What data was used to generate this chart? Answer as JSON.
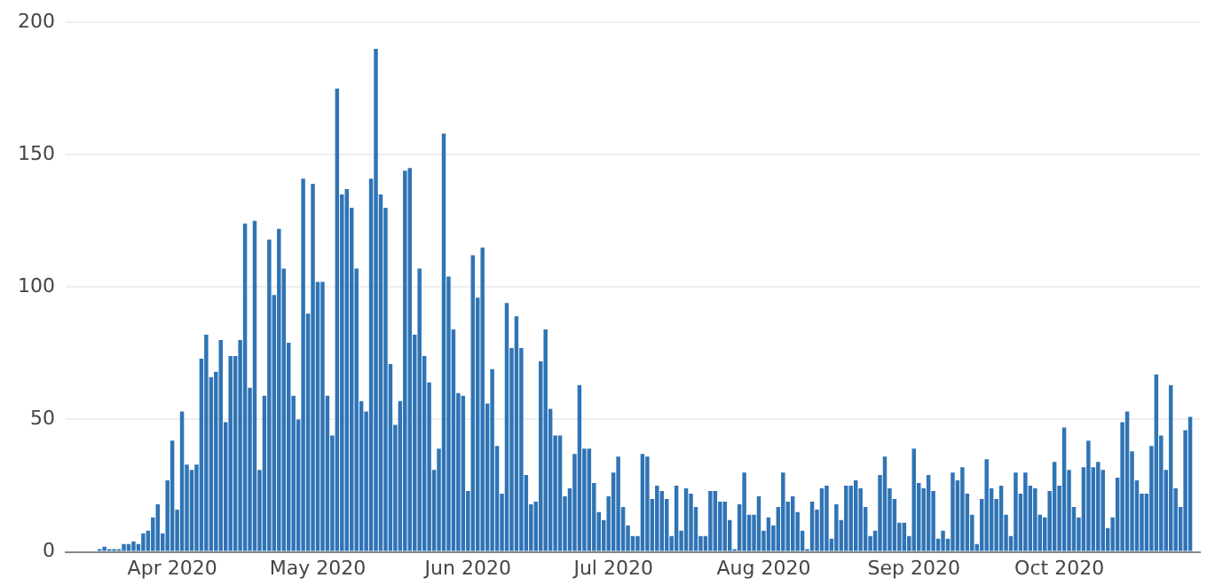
{
  "chart_data": {
    "type": "bar",
    "x": [
      "2020-03-17",
      "2020-03-18",
      "2020-03-19",
      "2020-03-20",
      "2020-03-21",
      "2020-03-22",
      "2020-03-23",
      "2020-03-24",
      "2020-03-25",
      "2020-03-26",
      "2020-03-27",
      "2020-03-28",
      "2020-03-29",
      "2020-03-30",
      "2020-03-31",
      "2020-04-01",
      "2020-04-02",
      "2020-04-03",
      "2020-04-04",
      "2020-04-05",
      "2020-04-06",
      "2020-04-07",
      "2020-04-08",
      "2020-04-09",
      "2020-04-10",
      "2020-04-11",
      "2020-04-12",
      "2020-04-13",
      "2020-04-14",
      "2020-04-15",
      "2020-04-16",
      "2020-04-17",
      "2020-04-18",
      "2020-04-19",
      "2020-04-20",
      "2020-04-21",
      "2020-04-22",
      "2020-04-23",
      "2020-04-24",
      "2020-04-25",
      "2020-04-26",
      "2020-04-27",
      "2020-04-28",
      "2020-04-29",
      "2020-04-30",
      "2020-05-01",
      "2020-05-02",
      "2020-05-03",
      "2020-05-04",
      "2020-05-05",
      "2020-05-06",
      "2020-05-07",
      "2020-05-08",
      "2020-05-09",
      "2020-05-10",
      "2020-05-11",
      "2020-05-12",
      "2020-05-13",
      "2020-05-14",
      "2020-05-15",
      "2020-05-16",
      "2020-05-17",
      "2020-05-18",
      "2020-05-19",
      "2020-05-20",
      "2020-05-21",
      "2020-05-22",
      "2020-05-23",
      "2020-05-24",
      "2020-05-25",
      "2020-05-26",
      "2020-05-27",
      "2020-05-28",
      "2020-05-29",
      "2020-05-30",
      "2020-05-31",
      "2020-06-01",
      "2020-06-02",
      "2020-06-03",
      "2020-06-04",
      "2020-06-05",
      "2020-06-06",
      "2020-06-07",
      "2020-06-08",
      "2020-06-09",
      "2020-06-10",
      "2020-06-11",
      "2020-06-12",
      "2020-06-13",
      "2020-06-14",
      "2020-06-15",
      "2020-06-16",
      "2020-06-17",
      "2020-06-18",
      "2020-06-19",
      "2020-06-20",
      "2020-06-21",
      "2020-06-22",
      "2020-06-23",
      "2020-06-24",
      "2020-06-25",
      "2020-06-26",
      "2020-06-27",
      "2020-06-28",
      "2020-06-29",
      "2020-06-30",
      "2020-07-01",
      "2020-07-02",
      "2020-07-03",
      "2020-07-04",
      "2020-07-05",
      "2020-07-06",
      "2020-07-07",
      "2020-07-08",
      "2020-07-09",
      "2020-07-10",
      "2020-07-11",
      "2020-07-12",
      "2020-07-13",
      "2020-07-14",
      "2020-07-15",
      "2020-07-16",
      "2020-07-17",
      "2020-07-18",
      "2020-07-19",
      "2020-07-20",
      "2020-07-21",
      "2020-07-22",
      "2020-07-23",
      "2020-07-24",
      "2020-07-25",
      "2020-07-26",
      "2020-07-27",
      "2020-07-28",
      "2020-07-29",
      "2020-07-30",
      "2020-07-31",
      "2020-08-01",
      "2020-08-02",
      "2020-08-03",
      "2020-08-04",
      "2020-08-05",
      "2020-08-06",
      "2020-08-07",
      "2020-08-08",
      "2020-08-09",
      "2020-08-10",
      "2020-08-11",
      "2020-08-12",
      "2020-08-13",
      "2020-08-14",
      "2020-08-15",
      "2020-08-16",
      "2020-08-17",
      "2020-08-18",
      "2020-08-19",
      "2020-08-20",
      "2020-08-21",
      "2020-08-22",
      "2020-08-23",
      "2020-08-24",
      "2020-08-25",
      "2020-08-26",
      "2020-08-27",
      "2020-08-28",
      "2020-08-29",
      "2020-08-30",
      "2020-08-31",
      "2020-09-01",
      "2020-09-02",
      "2020-09-03",
      "2020-09-04",
      "2020-09-05",
      "2020-09-06",
      "2020-09-07",
      "2020-09-08",
      "2020-09-09",
      "2020-09-10",
      "2020-09-11",
      "2020-09-12",
      "2020-09-13",
      "2020-09-14",
      "2020-09-15",
      "2020-09-16",
      "2020-09-17",
      "2020-09-18",
      "2020-09-19",
      "2020-09-20",
      "2020-09-21",
      "2020-09-22",
      "2020-09-23",
      "2020-09-24",
      "2020-09-25",
      "2020-09-26",
      "2020-09-27",
      "2020-09-28",
      "2020-09-29",
      "2020-09-30",
      "2020-10-01",
      "2020-10-02",
      "2020-10-03",
      "2020-10-04",
      "2020-10-05",
      "2020-10-06",
      "2020-10-07",
      "2020-10-08",
      "2020-10-09",
      "2020-10-10",
      "2020-10-11",
      "2020-10-12",
      "2020-10-13",
      "2020-10-14",
      "2020-10-15",
      "2020-10-16",
      "2020-10-17",
      "2020-10-18",
      "2020-10-19",
      "2020-10-20",
      "2020-10-21",
      "2020-10-22",
      "2020-10-23",
      "2020-10-24",
      "2020-10-25",
      "2020-10-26",
      "2020-10-27",
      "2020-10-28"
    ],
    "values": [
      1,
      2,
      1,
      1,
      1,
      3,
      3,
      4,
      3,
      7,
      8,
      13,
      18,
      7,
      27,
      42,
      16,
      53,
      33,
      31,
      33,
      73,
      82,
      66,
      68,
      80,
      49,
      74,
      74,
      80,
      124,
      62,
      125,
      31,
      59,
      118,
      97,
      122,
      107,
      79,
      59,
      50,
      141,
      90,
      139,
      102,
      102,
      59,
      44,
      175,
      135,
      137,
      130,
      107,
      57,
      53,
      141,
      190,
      135,
      130,
      71,
      48,
      57,
      144,
      145,
      82,
      107,
      74,
      64,
      31,
      39,
      158,
      104,
      84,
      60,
      59,
      23,
      112,
      96,
      115,
      56,
      69,
      40,
      22,
      94,
      77,
      89,
      77,
      29,
      18,
      19,
      72,
      84,
      54,
      44,
      44,
      21,
      24,
      37,
      63,
      39,
      39,
      26,
      15,
      12,
      21,
      30,
      36,
      17,
      10,
      6,
      6,
      37,
      36,
      20,
      25,
      23,
      20,
      6,
      25,
      8,
      24,
      22,
      17,
      6,
      6,
      23,
      23,
      19,
      19,
      12,
      1,
      18,
      30,
      14,
      14,
      21,
      8,
      13,
      10,
      17,
      30,
      19,
      21,
      15,
      8,
      1,
      19,
      16,
      24,
      25,
      5,
      18,
      12,
      25,
      25,
      27,
      24,
      17,
      6,
      8,
      29,
      36,
      24,
      20,
      11,
      11,
      6,
      39,
      26,
      24,
      29,
      23,
      5,
      8,
      5,
      30,
      27,
      32,
      22,
      14,
      3,
      20,
      35,
      24,
      20,
      25,
      14,
      6,
      30,
      22,
      30,
      25,
      24,
      14,
      13,
      23,
      34,
      25,
      47,
      31,
      17,
      13,
      32,
      42,
      32,
      34,
      31,
      9,
      13,
      28,
      49,
      53,
      38,
      27,
      22,
      22,
      40,
      67,
      44,
      31,
      63,
      24,
      17,
      46,
      51
    ],
    "color": "#2f74b5",
    "xlim": [
      "2020-03-10",
      "2020-10-30"
    ],
    "xticks": [
      {
        "value": "2020-04-01",
        "label": "Apr 2020"
      },
      {
        "value": "2020-05-01",
        "label": "May 2020"
      },
      {
        "value": "2020-06-01",
        "label": "Jun 2020"
      },
      {
        "value": "2020-07-01",
        "label": "Jul 2020"
      },
      {
        "value": "2020-08-01",
        "label": "Aug 2020"
      },
      {
        "value": "2020-09-01",
        "label": "Sep 2020"
      },
      {
        "value": "2020-10-01",
        "label": "Oct 2020"
      }
    ],
    "ylim": [
      0,
      200
    ],
    "yticks": [
      0,
      50,
      100,
      150,
      200
    ],
    "grid": "y"
  }
}
